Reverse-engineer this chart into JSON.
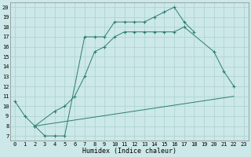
{
  "line1_x": [
    0,
    1,
    2,
    3,
    4,
    5,
    7,
    8,
    9,
    10,
    11,
    12,
    13,
    14,
    15,
    16,
    17,
    18
  ],
  "line1_y": [
    10.5,
    9,
    8,
    7,
    7,
    7,
    17,
    17,
    17,
    18.5,
    18.5,
    18.5,
    18.5,
    19,
    19.5,
    20,
    18.5,
    17.5
  ],
  "line2_x": [
    2,
    4,
    5,
    6,
    7,
    8,
    9,
    10,
    11,
    12,
    13,
    14,
    15,
    16,
    17,
    20,
    21,
    22
  ],
  "line2_y": [
    8,
    9.5,
    10,
    11,
    13,
    15.5,
    16,
    17,
    17.5,
    17.5,
    17.5,
    17.5,
    17.5,
    17.5,
    18,
    15.5,
    13.5,
    12
  ],
  "line3_x": [
    2,
    22
  ],
  "line3_y": [
    8,
    11
  ],
  "line_color": "#2d7d6e",
  "bg_color": "#cce8e8",
  "grid_color": "#aad0d0",
  "xlabel": "Humidex (Indice chaleur)",
  "xlim": [
    -0.5,
    23.5
  ],
  "ylim": [
    6.5,
    20.5
  ],
  "xticks": [
    0,
    1,
    2,
    3,
    4,
    5,
    6,
    7,
    8,
    9,
    10,
    11,
    12,
    13,
    14,
    15,
    16,
    17,
    18,
    19,
    20,
    21,
    22,
    23
  ],
  "yticks": [
    7,
    8,
    9,
    10,
    11,
    12,
    13,
    14,
    15,
    16,
    17,
    18,
    19,
    20
  ],
  "axis_fontsize": 6,
  "tick_fontsize": 5
}
